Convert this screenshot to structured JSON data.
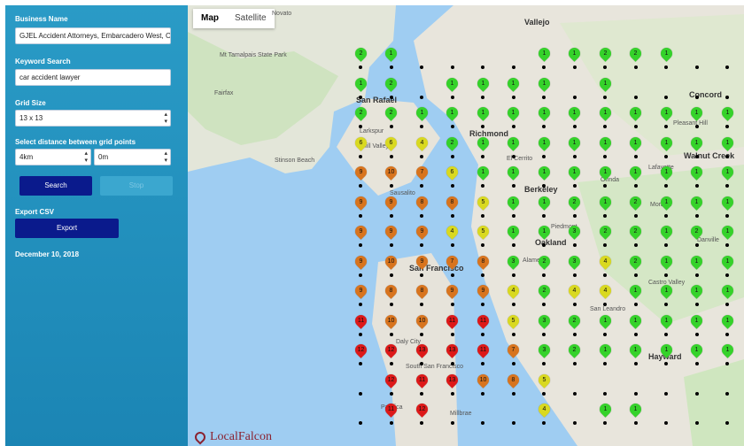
{
  "sidebar": {
    "business_name_label": "Business Name",
    "business_name_value": "GJEL Accident Attorneys, Embarcadero West, Oa",
    "keyword_label": "Keyword Search",
    "keyword_value": "car accident lawyer",
    "grid_size_label": "Grid Size",
    "grid_size_value": "13 x 13",
    "distance_label": "Select distance between grid points",
    "distance_value": "4km",
    "offset_value": "0m",
    "search_label": "Search",
    "stop_label": "Stop",
    "export_label": "Export CSV",
    "export_button": "Export",
    "date": "December 10, 2018"
  },
  "map": {
    "tabs": [
      "Map",
      "Satellite"
    ],
    "active_tab": "Map",
    "logo_text": "LocalFalcon",
    "pin_colors": {
      "green": "#35d22a",
      "yellow": "#d9d920",
      "orange": "#d8741e",
      "red": "#dd1818"
    },
    "rank_grid": [
      [
        2,
        1,
        null,
        null,
        null,
        null,
        1,
        1,
        2,
        2,
        1,
        null,
        null
      ],
      [
        1,
        2,
        null,
        1,
        1,
        1,
        1,
        null,
        1,
        null,
        null,
        null,
        null
      ],
      [
        2,
        2,
        1,
        1,
        1,
        1,
        1,
        1,
        1,
        1,
        1,
        1,
        1
      ],
      [
        6,
        6,
        4,
        2,
        1,
        1,
        1,
        1,
        1,
        1,
        1,
        1,
        1
      ],
      [
        9,
        10,
        7,
        6,
        1,
        1,
        1,
        1,
        1,
        1,
        1,
        1,
        1
      ],
      [
        9,
        9,
        8,
        8,
        5,
        1,
        1,
        2,
        1,
        2,
        1,
        1,
        1
      ],
      [
        9,
        9,
        9,
        4,
        5,
        1,
        1,
        3,
        2,
        2,
        1,
        2,
        1
      ],
      [
        9,
        10,
        9,
        7,
        8,
        3,
        2,
        3,
        4,
        2,
        1,
        1,
        1
      ],
      [
        9,
        8,
        8,
        9,
        9,
        4,
        2,
        4,
        4,
        1,
        1,
        1,
        1
      ],
      [
        11,
        10,
        10,
        11,
        11,
        5,
        3,
        2,
        1,
        1,
        1,
        1,
        1
      ],
      [
        12,
        12,
        13,
        13,
        11,
        7,
        3,
        2,
        1,
        1,
        1,
        1,
        1
      ],
      [
        null,
        12,
        11,
        13,
        10,
        8,
        5,
        null,
        null,
        null,
        null,
        null,
        null
      ],
      [
        null,
        11,
        12,
        null,
        null,
        null,
        4,
        null,
        1,
        1,
        null,
        null,
        null
      ]
    ],
    "labels": {
      "san_rafael": "San Rafael",
      "richmond": "Richmond",
      "berkeley": "Berkeley",
      "oakland": "Oakland",
      "alameda": "Alameda",
      "san_francisco": "San Francisco",
      "daly_city": "Daly City",
      "sausalito": "Sausalito",
      "concord": "Concord",
      "fairfax": "Fairfax",
      "larkspur": "Larkspur",
      "mill_valley": "Mill Valley",
      "stinson_beach": "Stinson Beach",
      "piedmont": "Piedmont",
      "san_leandro": "San Leandro",
      "hayward": "Hayward",
      "castro_valley": "Castro Valley",
      "walnut_creek": "Walnut Creek",
      "lafayette": "Lafayette",
      "orinda": "Orinda",
      "moraga": "Moraga",
      "pacifica": "Pacifica",
      "millbrae": "Millbrae",
      "south_sf": "South San Francisco",
      "tamalpais": "Mt Tamalpais State Park",
      "el_cerrito": "El Cerrito",
      "pleasant_hill": "Pleasant Hill",
      "danville": "Danville",
      "novato": "Novato",
      "vallejo": "Vallejo"
    }
  }
}
